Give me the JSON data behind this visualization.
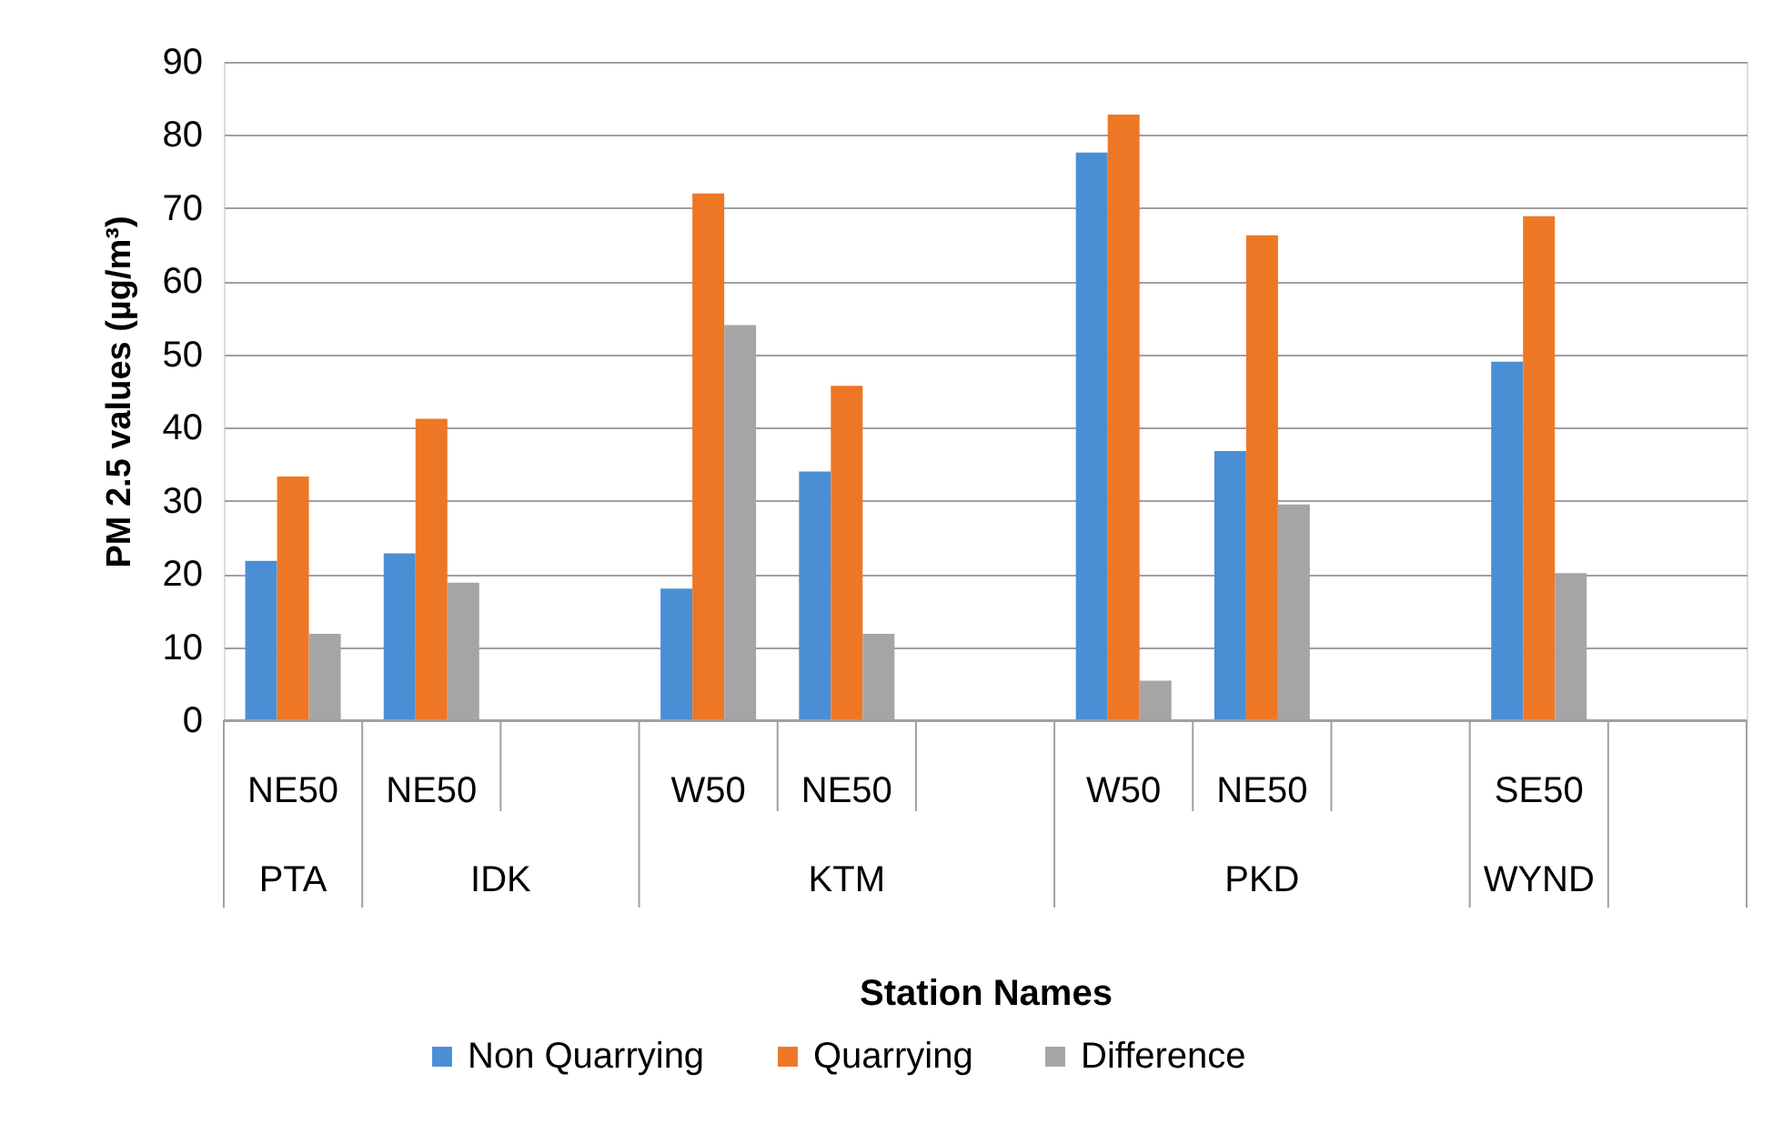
{
  "chart_data": {
    "type": "bar",
    "xlabel": "Station Names",
    "ylabel": "PM 2.5 values (µg/m³)",
    "categories": [
      "NE50",
      "NE50",
      null,
      "W50",
      "NE50",
      null,
      "W50",
      "NE50",
      null,
      "SE50",
      null
    ],
    "series": [
      {
        "name": "Non Quarrying",
        "color": "#4a8fd4",
        "values": [
          21.8,
          22.8,
          null,
          18,
          34,
          null,
          77.6,
          36.8,
          null,
          49,
          null
        ]
      },
      {
        "name": "Quarrying",
        "color": "#ee7726",
        "values": [
          33.3,
          41.2,
          null,
          72,
          45.7,
          null,
          82.8,
          66.3,
          null,
          68.9,
          null
        ]
      },
      {
        "name": "Difference",
        "color": "#a5a5a5",
        "values": [
          11.8,
          18.8,
          null,
          54,
          11.8,
          null,
          5.4,
          29.5,
          null,
          20.1,
          null
        ]
      }
    ],
    "ylim": [
      0,
      90
    ],
    "yticks": [
      0,
      10,
      20,
      30,
      40,
      50,
      60,
      70,
      80,
      90
    ],
    "grid": "y",
    "legend": "bottom",
    "annotations": [
      "PTA",
      "IDK",
      "KTM",
      "PKD",
      "WYND"
    ]
  }
}
